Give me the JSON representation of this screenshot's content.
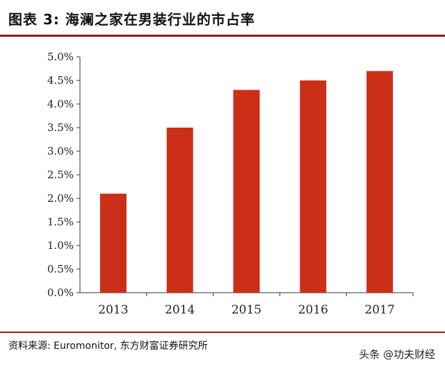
{
  "header": {
    "title": "图表 3: 海澜之家在男装行业的市占率"
  },
  "footer": {
    "source": "资料来源: Euromonitor, 东方财富证券研究所",
    "watermark": "头条 @功夫财经"
  },
  "colors": {
    "bar": "#cc2f18",
    "rule": "#8c1a16",
    "axis": "#333333"
  },
  "chart_data": {
    "type": "bar",
    "title": "",
    "xlabel": "",
    "ylabel": "",
    "categories": [
      "2013",
      "2014",
      "2015",
      "2016",
      "2017"
    ],
    "values": [
      2.1,
      3.5,
      4.3,
      4.5,
      4.7
    ],
    "unit": "%",
    "ylim": [
      0,
      5
    ],
    "yticks": [
      "0.0%",
      "0.5%",
      "1.0%",
      "1.5%",
      "2.0%",
      "2.5%",
      "3.0%",
      "3.5%",
      "4.0%",
      "4.5%",
      "5.0%"
    ],
    "grid": false,
    "legend": "none"
  }
}
